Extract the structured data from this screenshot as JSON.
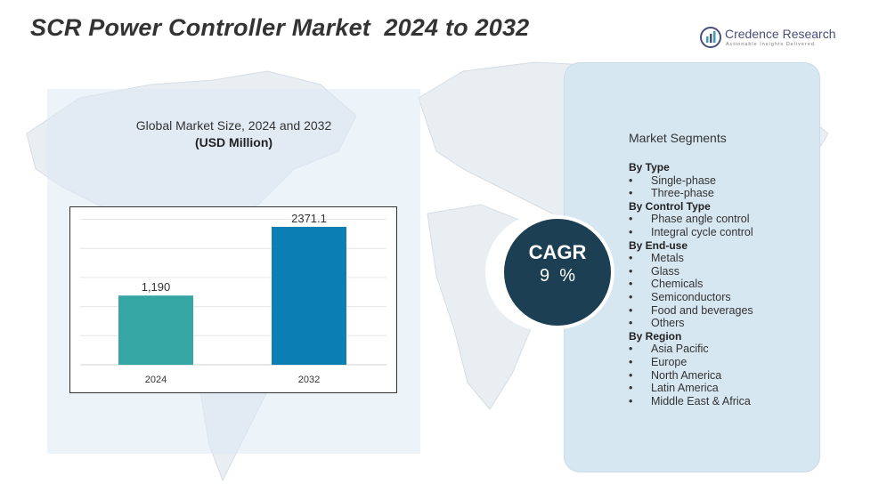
{
  "header": {
    "title": "SCR Power Controller Market  2024 to 2032"
  },
  "brand": {
    "name": "Credence Research",
    "tagline": "Actionable Insights Delivered",
    "color": "#4a4f7a"
  },
  "chart_data": {
    "type": "bar",
    "title": "Global Market Size, 2024 and 2032",
    "unit_label": "(USD Million)",
    "categories": [
      "2024",
      "2032"
    ],
    "values": [
      1190,
      2371.1
    ],
    "value_labels": [
      "1,190",
      "2371.1"
    ],
    "colors": [
      "#36a6a5",
      "#0b7fb3"
    ],
    "ylim": [
      0,
      2600
    ],
    "grid": true,
    "legend": "none"
  },
  "cagr": {
    "label": "CAGR",
    "value": "9  %"
  },
  "segments": {
    "heading": "Market Segments",
    "bullet": "•",
    "groups": [
      {
        "title": "By Type",
        "items": [
          "Single-phase",
          "Three-phase"
        ]
      },
      {
        "title": "By Control Type",
        "items": [
          "Phase angle control",
          "Integral cycle control"
        ]
      },
      {
        "title": "By  End-use",
        "items": [
          "Metals",
          "Glass",
          "Chemicals",
          "Semiconductors",
          "Food and beverages",
          "Others"
        ]
      },
      {
        "title": "By Region",
        "items": [
          "Asia Pacific",
          "Europe",
          "North America",
          "Latin America",
          "Middle East & Africa"
        ]
      }
    ]
  }
}
